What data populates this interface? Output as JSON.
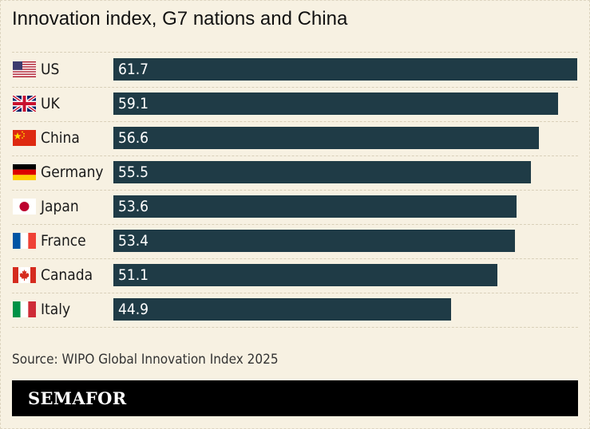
{
  "title": "Innovation index, G7 nations and China",
  "source": "Source: WIPO Global Innovation Index 2025",
  "brand": "SEMAFOR",
  "colors": {
    "bar": "#1f3b46",
    "background": "#f7f1e2",
    "value_text": "#ffffff"
  },
  "chart_data": {
    "type": "bar",
    "orientation": "horizontal",
    "title": "Innovation index, G7 nations and China",
    "categories": [
      "US",
      "UK",
      "China",
      "Germany",
      "Japan",
      "France",
      "Canada",
      "Italy"
    ],
    "values": [
      61.7,
      59.1,
      56.6,
      55.5,
      53.6,
      53.4,
      51.1,
      44.9
    ],
    "value_labels": [
      "61.7",
      "59.1",
      "56.6",
      "55.5",
      "53.6",
      "53.4",
      "51.1",
      "44.9"
    ],
    "flags": [
      "us-flag-icon",
      "uk-flag-icon",
      "china-flag-icon",
      "germany-flag-icon",
      "japan-flag-icon",
      "france-flag-icon",
      "canada-flag-icon",
      "italy-flag-icon"
    ],
    "xlim": [
      0,
      61.7
    ],
    "grid": false,
    "legend": "none"
  }
}
